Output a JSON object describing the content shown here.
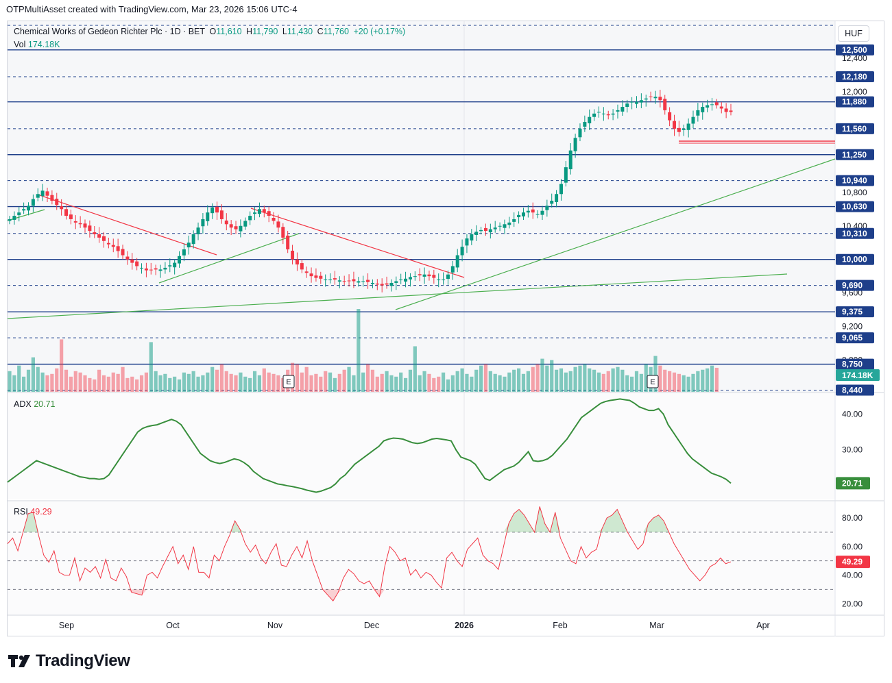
{
  "header": {
    "credit": "OTPMultiAsset created with TradingView.com, Mar 23, 2026 15:06 UTC-4"
  },
  "symbol": {
    "name": "Chemical Works of Gedeon Richter Plc · 1D · BET",
    "open_label": "O",
    "open": "11,610",
    "high_label": "H",
    "high": "11,790",
    "low_label": "L",
    "low": "11,430",
    "close_label": "C",
    "close": "11,760",
    "change": "+20 (+0.17%)"
  },
  "volume": {
    "label": "Vol",
    "value": "174.18K"
  },
  "currency": "HUF",
  "adx": {
    "label": "ADX",
    "value": "20.71"
  },
  "rsi": {
    "label": "RSI",
    "value": "49.29"
  },
  "logo_text": "TradingView",
  "colors": {
    "up": "#089981",
    "down": "#f23645",
    "adx": "#388e3c",
    "rsi": "#f23645",
    "level": "#1e3f8a",
    "trend_green": "#4caf50",
    "trend_red": "#f23645"
  },
  "chart_data": [
    {
      "type": "candlestick",
      "title": "Chemical Works of Gedeon Richter Plc · 1D · BET",
      "x_tick_labels": [
        "Sep",
        "Oct",
        "Nov",
        "Dec",
        "2026",
        "Feb",
        "Mar",
        "Apr"
      ],
      "y_tick_labels": [
        "12,400",
        "12,000",
        "10,800",
        "10,400",
        "9,600",
        "9,200",
        "8,800"
      ],
      "price_level_labels": [
        "12,500",
        "12,180",
        "11,880",
        "11,560",
        "11,250",
        "10,940",
        "10,630",
        "10,310",
        "10,000",
        "9,690",
        "9,375",
        "9,065",
        "8,750",
        "8,440"
      ],
      "solid_levels": [
        12500,
        11880,
        11250,
        10630,
        10000,
        9375,
        8750
      ],
      "dashed_levels": [
        12180,
        11560,
        10940,
        10310,
        9690,
        9065,
        8440
      ],
      "ylim": [
        8420,
        12850
      ],
      "last_close": 11760,
      "earnings_markers": [
        "E",
        "E"
      ],
      "close_series": [
        10480,
        10520,
        10560,
        10600,
        10640,
        10720,
        10780,
        10820,
        10760,
        10700,
        10650,
        10600,
        10520,
        10480,
        10440,
        10420,
        10380,
        10340,
        10300,
        10260,
        10220,
        10180,
        10150,
        10100,
        10050,
        10000,
        9960,
        9920,
        9900,
        9870,
        9870,
        9880,
        9880,
        9900,
        9930,
        9960,
        10040,
        10120,
        10200,
        10300,
        10380,
        10480,
        10560,
        10620,
        10560,
        10480,
        10420,
        10380,
        10360,
        10400,
        10460,
        10520,
        10560,
        10600,
        10560,
        10520,
        10460,
        10380,
        10260,
        10120,
        10000,
        9940,
        9880,
        9840,
        9800,
        9780,
        9770,
        9760,
        9760,
        9760,
        9750,
        9740,
        9740,
        9740,
        9740,
        9740,
        9730,
        9720,
        9700,
        9690,
        9700,
        9720,
        9740,
        9760,
        9770,
        9790,
        9800,
        9810,
        9820,
        9800,
        9780,
        9760,
        9760,
        9820,
        9920,
        10050,
        10150,
        10250,
        10300,
        10330,
        10350,
        10340,
        10360,
        10380,
        10400,
        10420,
        10440,
        10480,
        10530,
        10560,
        10580,
        10560,
        10540,
        10580,
        10640,
        10700,
        10780,
        10900,
        11100,
        11300,
        11450,
        11560,
        11640,
        11700,
        11740,
        11760,
        11740,
        11720,
        11740,
        11780,
        11820,
        11860,
        11880,
        11880,
        11900,
        11920,
        11940,
        11940,
        11900,
        11780,
        11660,
        11560,
        11520,
        11560,
        11620,
        11700,
        11780,
        11820,
        11840,
        11850,
        11840,
        11800,
        11760,
        11760
      ]
    },
    {
      "type": "bar",
      "title": "Vol",
      "last_value": "174.18K",
      "volume_series": [
        150,
        120,
        190,
        110,
        160,
        250,
        180,
        140,
        120,
        130,
        170,
        380,
        160,
        110,
        150,
        140,
        120,
        100,
        90,
        160,
        120,
        110,
        140,
        130,
        180,
        100,
        110,
        90,
        120,
        140,
        360,
        150,
        120,
        130,
        100,
        110,
        90,
        140,
        130,
        150,
        110,
        120,
        140,
        180,
        160,
        200,
        150,
        130,
        120,
        140,
        110,
        100,
        150,
        120,
        170,
        140,
        130,
        120,
        100,
        160,
        210,
        200,
        140,
        180,
        120,
        130,
        110,
        150,
        140,
        100,
        130,
        160,
        180,
        120,
        600,
        140,
        200,
        160,
        110,
        130,
        150,
        120,
        110,
        140,
        100,
        160,
        330,
        120,
        150,
        130,
        100,
        110,
        140,
        90,
        120,
        150,
        170,
        130,
        110,
        160,
        190,
        200,
        150,
        130,
        120,
        110,
        140,
        160,
        170,
        130,
        150,
        180,
        200,
        240,
        190,
        230,
        160,
        170,
        140,
        150,
        180,
        190,
        200,
        170,
        160,
        140,
        130,
        150,
        170,
        180,
        160,
        120,
        110,
        150,
        130,
        200,
        180,
        260,
        190,
        160,
        150,
        140,
        130,
        120,
        110,
        130,
        150,
        160,
        170,
        190,
        174
      ],
      "ylim": [
        0,
        620
      ]
    },
    {
      "type": "line",
      "title": "ADX",
      "last_value": 20.71,
      "y_tick_labels": [
        "40.00",
        "30.00"
      ],
      "ylim": [
        16,
        46
      ],
      "values": [
        21,
        22,
        23,
        24,
        25,
        26,
        27,
        26.5,
        26,
        25.5,
        25,
        24.5,
        24,
        23.5,
        23,
        22.5,
        22.3,
        22,
        22,
        21.8,
        22,
        23,
        25,
        27,
        29,
        31,
        33,
        35,
        36,
        36.5,
        36.8,
        37,
        37.5,
        38,
        38.5,
        38,
        37,
        35,
        33,
        31,
        29,
        28,
        27,
        26.5,
        26.2,
        26.5,
        27,
        27.5,
        27.2,
        26.5,
        25.5,
        24,
        23,
        22,
        21.5,
        21,
        20.5,
        20.3,
        20,
        19.8,
        19.5,
        19.2,
        18.8,
        18.5,
        18.2,
        18.5,
        19,
        19.5,
        20.5,
        22,
        23,
        24.5,
        26,
        27,
        28,
        29,
        30,
        31,
        32.5,
        33,
        33.3,
        33.2,
        33,
        32.5,
        32,
        31.8,
        32,
        32.5,
        33,
        33.2,
        33,
        32.8,
        32.5,
        30,
        28,
        27.5,
        27,
        26,
        24,
        22,
        21.5,
        22.5,
        23.5,
        24.5,
        25,
        25.5,
        26.5,
        28,
        29.5,
        27,
        26.8,
        27,
        27.5,
        28.5,
        30,
        31.5,
        33,
        35,
        37,
        39,
        40,
        41,
        42,
        43,
        43.5,
        43.8,
        44,
        44.2,
        44,
        43.8,
        43,
        42,
        41.5,
        41,
        41,
        41.5,
        40,
        37,
        35,
        33,
        31,
        29,
        27.5,
        26.5,
        25.5,
        24.5,
        23.5,
        23,
        22.5,
        21.8,
        20.71
      ]
    },
    {
      "type": "line",
      "title": "RSI",
      "last_value": 49.29,
      "y_tick_labels": [
        "80.00",
        "60.00",
        "40.00",
        "20.00"
      ],
      "ylim": [
        12,
        92
      ],
      "bands": [
        30,
        50,
        70
      ],
      "values": [
        62,
        66,
        57,
        70,
        83,
        84,
        68,
        54,
        49,
        57,
        42,
        40,
        40,
        52,
        36,
        45,
        42,
        46,
        38,
        51,
        38,
        36,
        45,
        39,
        28,
        27,
        26,
        40,
        42,
        38,
        46,
        53,
        60,
        48,
        54,
        44,
        60,
        42,
        42,
        38,
        54,
        50,
        60,
        68,
        78,
        72,
        62,
        56,
        61,
        52,
        48,
        56,
        62,
        47,
        46,
        54,
        60,
        52,
        64,
        50,
        40,
        30,
        26,
        22,
        28,
        38,
        44,
        41,
        36,
        34,
        36,
        30,
        25,
        46,
        60,
        56,
        50,
        52,
        40,
        44,
        38,
        42,
        40,
        35,
        31,
        52,
        56,
        50,
        46,
        58,
        62,
        66,
        54,
        50,
        48,
        44,
        60,
        76,
        83,
        86,
        82,
        76,
        70,
        88,
        76,
        70,
        84,
        66,
        58,
        50,
        48,
        60,
        52,
        56,
        58,
        72,
        80,
        82,
        86,
        78,
        70,
        64,
        58,
        62,
        76,
        80,
        82,
        78,
        70,
        62,
        56,
        50,
        44,
        40,
        36,
        40,
        46,
        48,
        52,
        48,
        49.29
      ]
    }
  ]
}
